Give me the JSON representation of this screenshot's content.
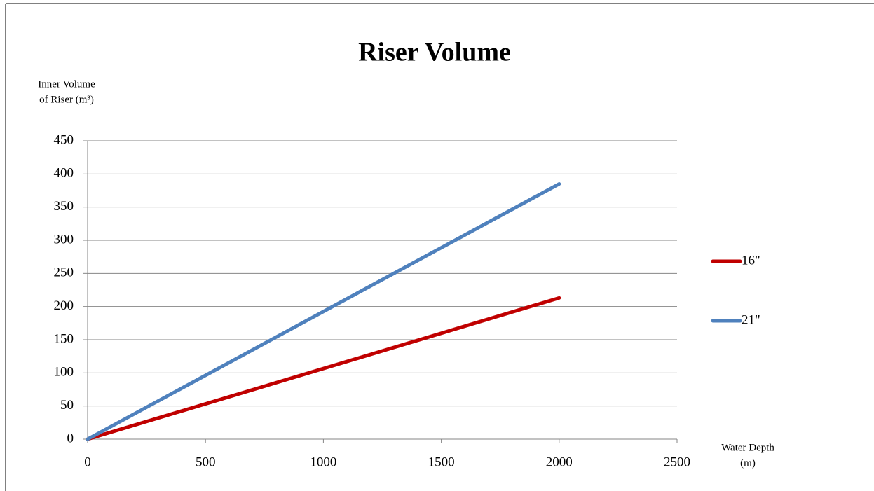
{
  "chart_data": {
    "type": "line",
    "title": "Riser Volume",
    "ylabel": [
      "Inner Volume",
      "of Riser (m³)"
    ],
    "xlabel": [
      "Water Depth",
      "(m)"
    ],
    "x": [
      0,
      2000
    ],
    "series": [
      {
        "name": "16\"",
        "color": "#c00000",
        "values": [
          0,
          213
        ]
      },
      {
        "name": "21\"",
        "color": "#4f81bd",
        "values": [
          0,
          385
        ]
      }
    ],
    "xlim": [
      0,
      2500
    ],
    "xticks": [
      0,
      500,
      1000,
      1500,
      2000,
      2500
    ],
    "ylim": [
      0,
      450
    ],
    "yticks": [
      0,
      50,
      100,
      150,
      200,
      250,
      300,
      350,
      400,
      450
    ],
    "grid": true,
    "legend": "right"
  }
}
